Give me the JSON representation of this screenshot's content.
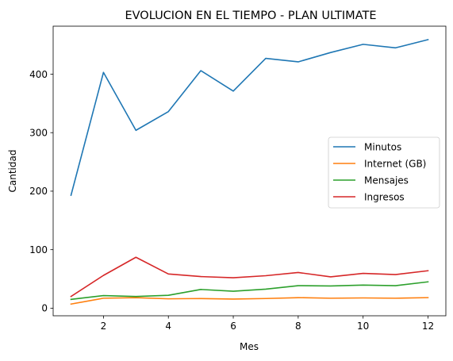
{
  "chart_data": {
    "type": "line",
    "title": "EVOLUCION EN EL TIEMPO - PLAN ULTIMATE",
    "xlabel": "Mes",
    "ylabel": "Cantidad",
    "x": [
      1,
      2,
      3,
      4,
      5,
      6,
      7,
      8,
      9,
      10,
      11,
      12
    ],
    "xlim": [
      0.45,
      12.55
    ],
    "ylim": [
      -13,
      482
    ],
    "xticks": [
      2,
      4,
      6,
      8,
      10,
      12
    ],
    "yticks": [
      0,
      100,
      200,
      300,
      400
    ],
    "grid": false,
    "legend_position": "center-right",
    "series": [
      {
        "name": "Minutos",
        "color": "#1f77b4",
        "values": [
          193,
          403,
          304,
          336,
          406,
          371,
          427,
          421,
          437,
          451,
          445,
          459
        ]
      },
      {
        "name": "Internet (GB)",
        "color": "#ff7f0e",
        "values": [
          7,
          17,
          18,
          16,
          16.5,
          15.5,
          16.5,
          18,
          17,
          17.5,
          17,
          18
        ]
      },
      {
        "name": "Mensajes",
        "color": "#2ca02c",
        "values": [
          15,
          21.5,
          20,
          22,
          32,
          29,
          32.5,
          38.5,
          38,
          39.5,
          38.5,
          45
        ]
      },
      {
        "name": "Ingresos",
        "color": "#d62728",
        "values": [
          20,
          56,
          87,
          58.5,
          54,
          52,
          55.5,
          61,
          53.5,
          59.5,
          57.5,
          64
        ]
      }
    ]
  }
}
